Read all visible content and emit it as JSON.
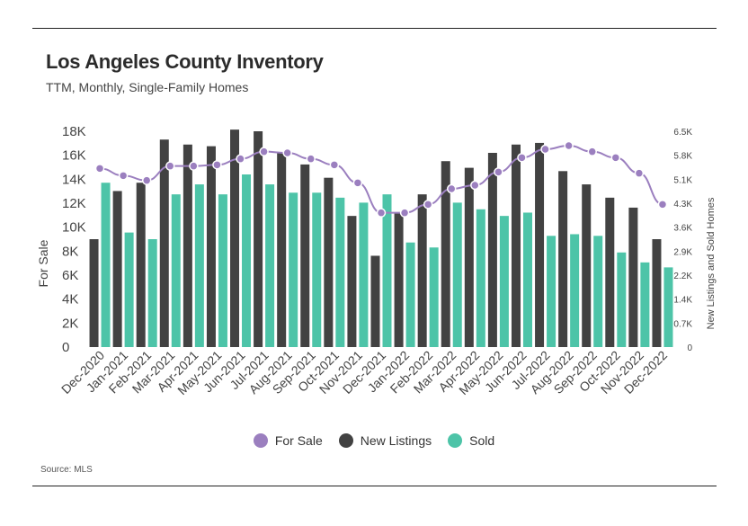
{
  "header": {
    "title": "Los Angeles County Inventory",
    "subtitle": "TTM, Monthly, Single-Family Homes"
  },
  "footer": {
    "source": "Source: MLS"
  },
  "colors": {
    "for_sale": "#9b7fbf",
    "new_listings": "#424242",
    "sold": "#4dc4a8"
  },
  "chart_data": {
    "type": "bar",
    "title": "Los Angeles County Inventory",
    "subtitle": "TTM, Monthly, Single-Family Homes",
    "categories": [
      "Dec-2020",
      "Jan-2021",
      "Feb-2021",
      "Mar-2021",
      "Apr-2021",
      "May-2021",
      "Jun-2021",
      "Jul-2021",
      "Aug-2021",
      "Sep-2021",
      "Oct-2021",
      "Nov-2021",
      "Dec-2021",
      "Jan-2022",
      "Feb-2022",
      "Mar-2022",
      "Apr-2022",
      "May-2022",
      "Jun-2022",
      "Jul-2022",
      "Aug-2022",
      "Sep-2022",
      "Oct-2022",
      "Nov-2022",
      "Dec-2022"
    ],
    "ylabel": "For Sale",
    "y2label": "New Listings and Sold Homes",
    "ylim": [
      0,
      18000
    ],
    "y2lim": [
      0,
      6500
    ],
    "yticks": [
      "0",
      "2K",
      "4K",
      "6K",
      "8K",
      "10K",
      "12K",
      "14K",
      "16K",
      "18K"
    ],
    "y2ticks": [
      "0",
      "0.7K",
      "1.4K",
      "2.2K",
      "2.9K",
      "3.6K",
      "4.3K",
      "5.1K",
      "5.8K",
      "6.5K"
    ],
    "legend_position": "bottom",
    "series": [
      {
        "name": "For Sale",
        "type": "line",
        "axis": "left",
        "values": [
          14900,
          14300,
          13900,
          15100,
          15100,
          15200,
          15700,
          16300,
          16200,
          15700,
          15200,
          13700,
          11200,
          11200,
          11900,
          13200,
          13500,
          14600,
          15800,
          16500,
          16800,
          16300,
          15800,
          14500,
          11900
        ]
      },
      {
        "name": "New Listings",
        "type": "bar",
        "axis": "right",
        "values": [
          3250,
          4700,
          4950,
          6250,
          6100,
          6050,
          6550,
          6500,
          5850,
          5500,
          5100,
          3950,
          2750,
          4050,
          4600,
          5600,
          5400,
          5850,
          6100,
          6150,
          5300,
          4900,
          4500,
          4200,
          3250
        ]
      },
      {
        "name": "Sold",
        "type": "bar",
        "axis": "right",
        "values": [
          4950,
          3450,
          3250,
          4600,
          4900,
          4600,
          5200,
          4900,
          4650,
          4650,
          4500,
          4350,
          4600,
          3150,
          3000,
          4350,
          4150,
          3950,
          4050,
          3350,
          3400,
          3350,
          2850,
          2550,
          2400
        ]
      }
    ]
  }
}
